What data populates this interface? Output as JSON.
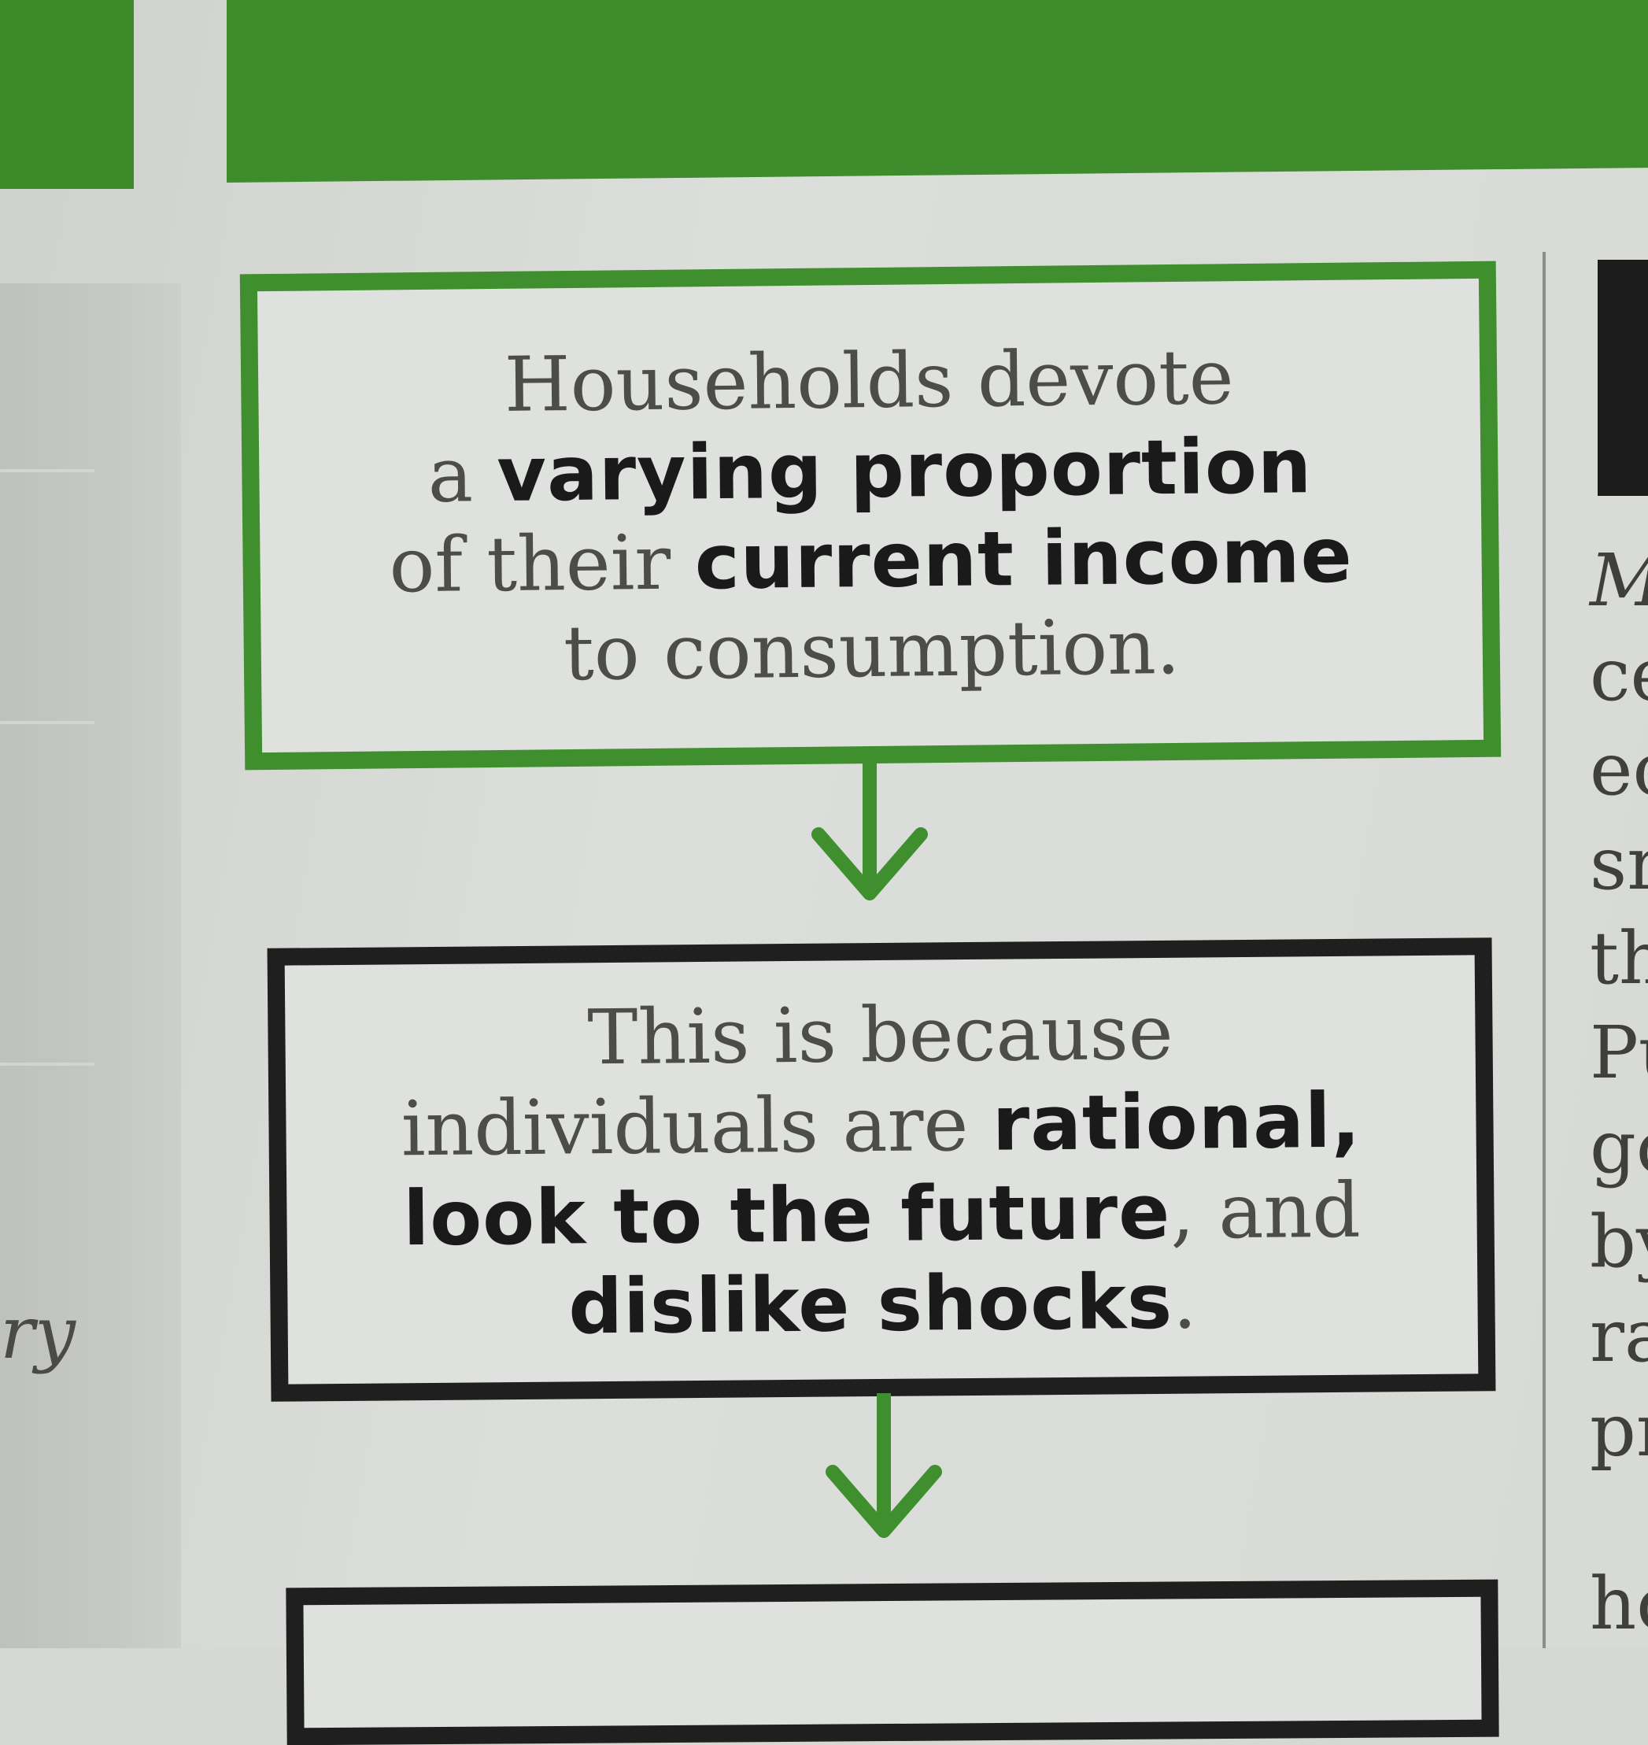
{
  "box1": {
    "line1": "Households devote",
    "line2_pre": "a ",
    "line2_bold": "varying proportion",
    "line3_pre": "of their ",
    "line3_bold": "current income",
    "line4": "to consumption."
  },
  "box2": {
    "line1": "This is because",
    "line2_pre": "individuals are ",
    "line2_bold": "rational,",
    "line3_bold": "look to the future",
    "line3_post": ", and",
    "line4_bold": "dislike shocks",
    "line4_post": "."
  },
  "margin_fragments": [
    "M",
    "ce",
    "ec",
    "sr",
    "th",
    "Pu",
    "go",
    "by",
    "ra",
    "pr",
    "hc"
  ],
  "left_fragment": "ry",
  "colors": {
    "green": "#3f8f2e",
    "black": "#1e1f1e",
    "paper": "#dfe1de"
  },
  "icons": [
    "down-arrow-icon",
    "down-arrow-icon"
  ]
}
